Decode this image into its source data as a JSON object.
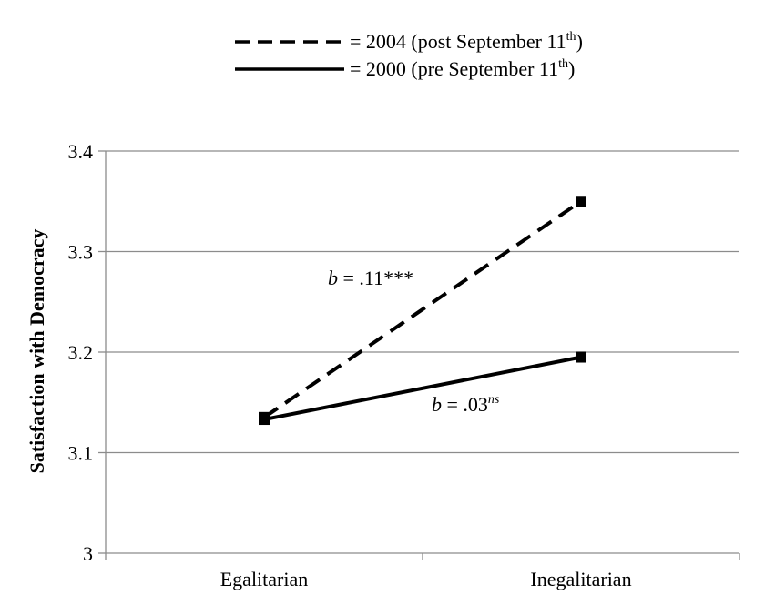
{
  "chart_data": {
    "type": "line",
    "categories": [
      "Egalitarian",
      "Inegalitarian"
    ],
    "series": [
      {
        "name": "2004 (post September 11th)",
        "values": [
          3.135,
          3.35
        ],
        "style": "dashed",
        "color": "#000000"
      },
      {
        "name": "2000 (pre September 11th)",
        "values": [
          3.133,
          3.195
        ],
        "style": "solid",
        "color": "#000000"
      }
    ],
    "legend": {
      "position": "top-center",
      "entries": [
        {
          "prefix": "= 2004 (post September 11",
          "sup": "th",
          "suffix": ")"
        },
        {
          "prefix": "= 2000 (pre September 11",
          "sup": "th",
          "suffix": ")"
        }
      ]
    },
    "ylabel": "Satisfaction with Democracy",
    "xlabel": "",
    "ylim": [
      3,
      3.4
    ],
    "yticks": [
      "3",
      "3.1",
      "3.2",
      "3.3",
      "3.4"
    ],
    "grid": true,
    "annotations": [
      {
        "series": 0,
        "italic": "b",
        "text": " = .11***",
        "sup": ""
      },
      {
        "series": 1,
        "italic": "b",
        "text": " = .03",
        "sup": "ns"
      }
    ]
  }
}
